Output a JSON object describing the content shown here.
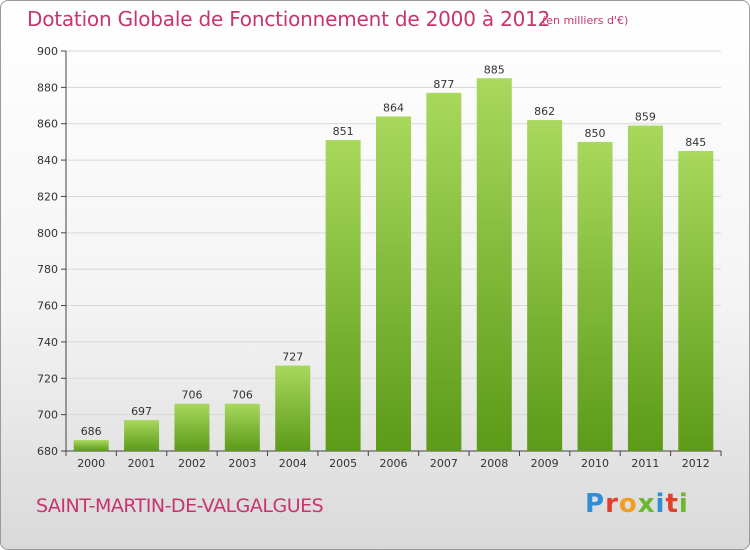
{
  "title": "Dotation Globale de Fonctionnement de 2000 à 2012",
  "unit_note": "(en milliers d'€)",
  "location": "SAINT-MARTIN-DE-VALGALGUES",
  "logo": {
    "letters": [
      "P",
      "r",
      "o",
      "x",
      "i",
      "t",
      "i"
    ],
    "colors": [
      "#2f8fd6",
      "#e0402a",
      "#f0a020",
      "#6ab82e",
      "#2f8fd6",
      "#e0402a",
      "#6ab82e"
    ]
  },
  "chart_data": {
    "type": "bar",
    "title": "Dotation Globale de Fonctionnement de 2000 à 2012",
    "categories": [
      "2000",
      "2001",
      "2002",
      "2003",
      "2004",
      "2005",
      "2006",
      "2007",
      "2008",
      "2009",
      "2010",
      "2011",
      "2012"
    ],
    "values": [
      686,
      697,
      706,
      706,
      727,
      851,
      864,
      877,
      885,
      862,
      850,
      859,
      845
    ],
    "ylim": [
      680,
      900
    ],
    "yticks": [
      680,
      700,
      720,
      740,
      760,
      780,
      800,
      820,
      840,
      860,
      880,
      900
    ],
    "grid": true,
    "bar_color": "#7dbe2f",
    "bar_top_color": "#a8d85c",
    "bar_bottom_color": "#5c9a18"
  }
}
